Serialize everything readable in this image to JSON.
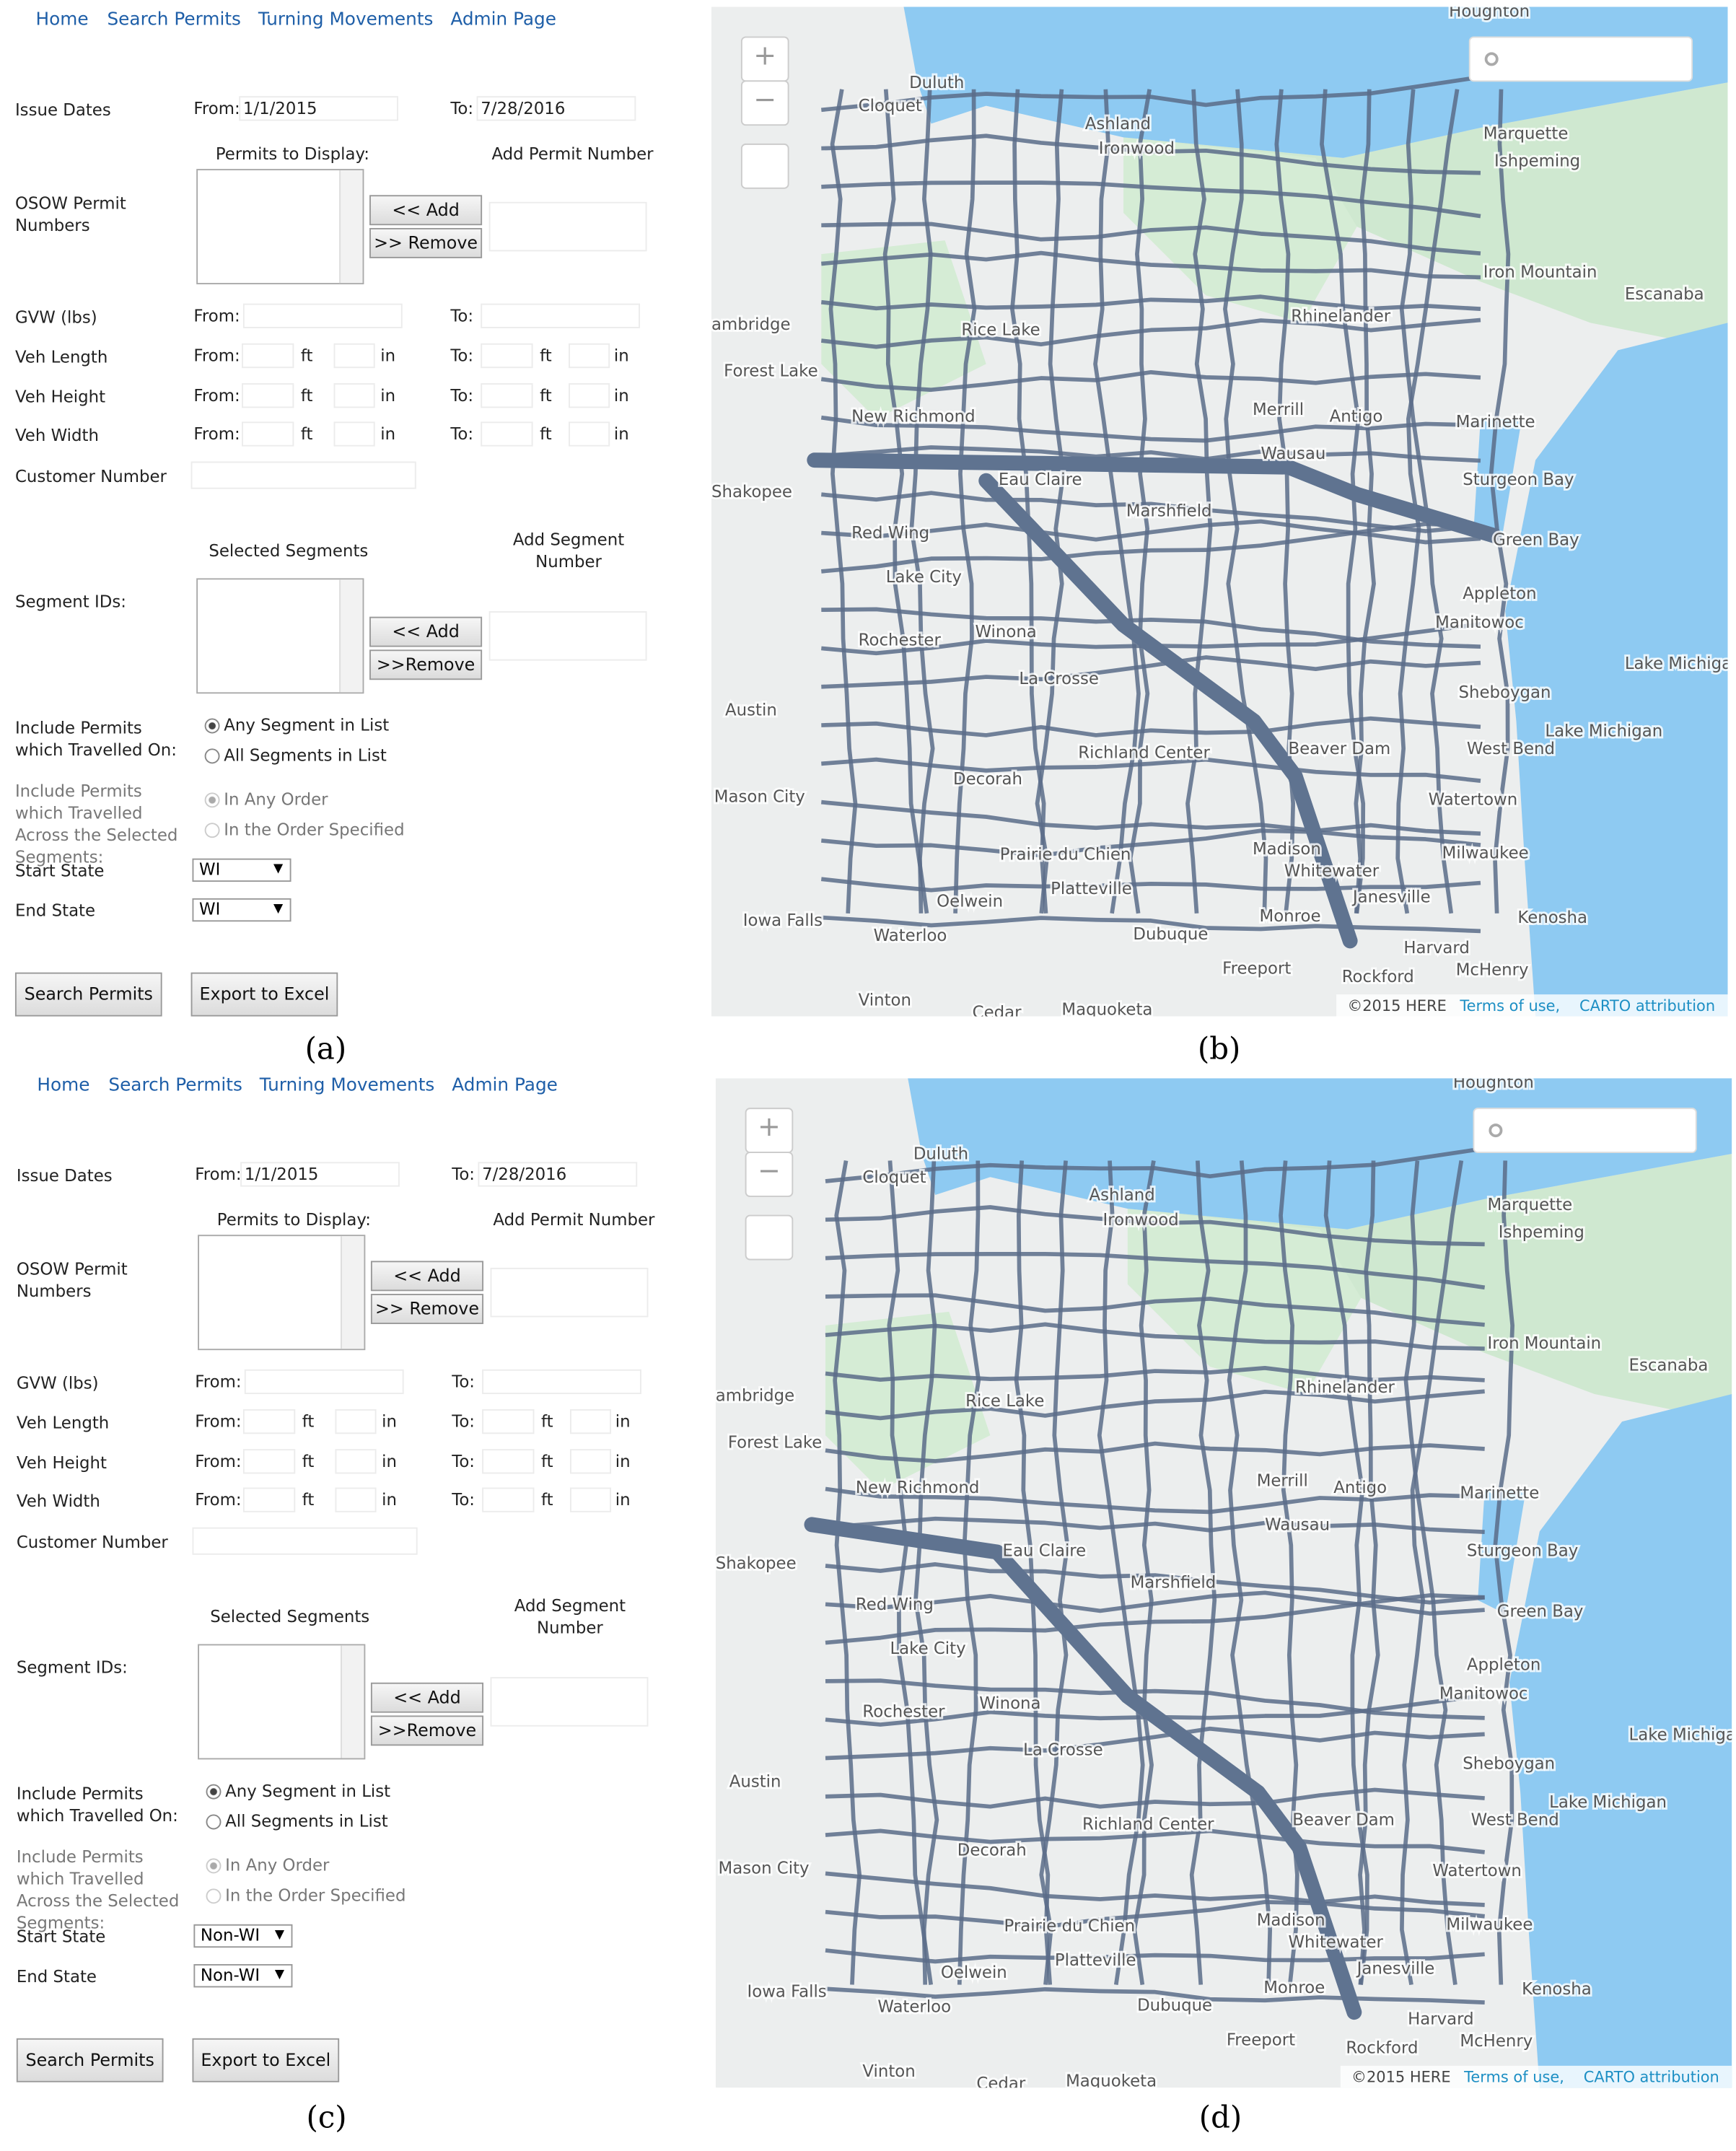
{
  "panels": [
    {
      "caption": "(a)",
      "form": {
        "nav": [
          "Home",
          "Search Permits",
          "Turning Movements",
          "Admin Page"
        ],
        "issue_dates": {
          "label": "Issue Dates",
          "from_label": "From:",
          "from": "1/1/2015",
          "to_label": "To:",
          "to": "7/28/2016"
        },
        "permits": {
          "label": "OSOW Permit Numbers",
          "list_label": "Permits to Display:",
          "add_label": "Add Permit Number",
          "add": "<< Add",
          "remove": ">> Remove"
        },
        "gvw": {
          "label": "GVW (lbs)",
          "from_label": "From:",
          "to_label": "To:"
        },
        "dims": [
          {
            "label": "Veh Length",
            "from_label": "From:",
            "ft": "ft",
            "in": "in",
            "to_label": "To:",
            "ft2": "ft",
            "in2": "in"
          },
          {
            "label": "Veh Height",
            "from_label": "From:",
            "ft": "ft",
            "in": "in",
            "to_label": "To:",
            "ft2": "ft",
            "in2": "in"
          },
          {
            "label": "Veh Width",
            "from_label": "From:",
            "ft": "ft",
            "in": "in",
            "to_label": "To:",
            "ft2": "ft",
            "in2": "in"
          }
        ],
        "customer": "Customer Number",
        "segments": {
          "label": "Segment IDs:",
          "list_label": "Selected Segments",
          "add_label": "Add Segment Number",
          "add": "<< Add",
          "remove": ">>Remove"
        },
        "travelled": {
          "label": "Include Permits which Travelled On:",
          "options": [
            "Any Segment in List",
            "All Segments in List"
          ]
        },
        "order": {
          "label": "Include Permits which Travelled Across the Selected Segments:",
          "options": [
            "In Any Order",
            "In the Order Specified"
          ]
        },
        "start_state": {
          "label": "Start State",
          "value": "WI"
        },
        "end_state": {
          "label": "End State",
          "value": "WI"
        },
        "buttons": [
          "Search Permits",
          "Export to Excel"
        ]
      }
    },
    {
      "caption": "(b)",
      "map": {
        "zoom_in": "+",
        "zoom_out": "−",
        "labels": [
          "Houghton",
          "Duluth",
          "Cloquet",
          "Ashland",
          "Ironwood",
          "Marquette",
          "Ishpeming",
          "Iron Mountain",
          "Escanaba",
          "ambridge",
          "Rice Lake",
          "Rhinelander",
          "Forest Lake",
          "New Richmond",
          "Merrill",
          "Antigo",
          "Marinette",
          "Wausau",
          "Eau Claire",
          "Shakopee",
          "Sturgeon Bay",
          "Green Bay",
          "Red Wing",
          "Marshfield",
          "Lake City",
          "Appleton",
          "Rochester",
          "Winona",
          "Manitowoc",
          "La Crosse",
          "Sheboygan",
          "Austin",
          "Lake Michigan",
          "Richland Center",
          "Beaver Dam",
          "West Bend",
          "Decorah",
          "Mason City",
          "Watertown",
          "Madison",
          "Milwaukee",
          "Prairie du Chien",
          "Whitewater",
          "Platteville",
          "Janesville",
          "Kenosha",
          "Iowa Falls",
          "Oelwein",
          "Waterloo",
          "Monroe",
          "Dubuque",
          "Harvard",
          "Freeport",
          "Rockford",
          "McHenry",
          "Vinton",
          "Cedar",
          "Maquoketa",
          "Lake Michigan"
        ],
        "attribution": [
          "©2015 HERE",
          "Terms of use,",
          "CARTO attribution"
        ]
      }
    },
    {
      "caption": "(c)",
      "form": {
        "nav": [
          "Home",
          "Search Permits",
          "Turning Movements",
          "Admin Page"
        ],
        "issue_dates": {
          "label": "Issue Dates",
          "from_label": "From:",
          "from": "1/1/2015",
          "to_label": "To:",
          "to": "7/28/2016"
        },
        "permits": {
          "label": "OSOW Permit Numbers",
          "list_label": "Permits to Display:",
          "add_label": "Add Permit Number",
          "add": "<< Add",
          "remove": ">> Remove"
        },
        "gvw": {
          "label": "GVW (lbs)",
          "from_label": "From:",
          "to_label": "To:"
        },
        "dims": [
          {
            "label": "Veh Length",
            "from_label": "From:",
            "ft": "ft",
            "in": "in",
            "to_label": "To:",
            "ft2": "ft",
            "in2": "in"
          },
          {
            "label": "Veh Height",
            "from_label": "From:",
            "ft": "ft",
            "in": "in",
            "to_label": "To:",
            "ft2": "ft",
            "in2": "in"
          },
          {
            "label": "Veh Width",
            "from_label": "From:",
            "ft": "ft",
            "in": "in",
            "to_label": "To:",
            "ft2": "ft",
            "in2": "in"
          }
        ],
        "customer": "Customer Number",
        "segments": {
          "label": "Segment IDs:",
          "list_label": "Selected Segments",
          "add_label": "Add Segment Number",
          "add": "<< Add",
          "remove": ">>Remove"
        },
        "travelled": {
          "label": "Include Permits which Travelled On:",
          "options": [
            "Any Segment in List",
            "All Segments in List"
          ]
        },
        "order": {
          "label": "Include Permits which Travelled Across the Selected Segments:",
          "options": [
            "In Any Order",
            "In the Order Specified"
          ]
        },
        "start_state": {
          "label": "Start State",
          "value": "Non-WI"
        },
        "end_state": {
          "label": "End State",
          "value": "Non-WI"
        },
        "buttons": [
          "Search Permits",
          "Export to Excel"
        ]
      }
    },
    {
      "caption": "(d)",
      "map": {
        "zoom_in": "+",
        "zoom_out": "−",
        "labels": [
          "Houghton",
          "Duluth",
          "Cloquet",
          "Ashland",
          "Ironwood",
          "Marquette",
          "Ishpeming",
          "Iron Mountain",
          "Escanaba",
          "ambridge",
          "Rice Lake",
          "Rhinelander",
          "Forest Lake",
          "New Richmond",
          "Merrill",
          "Antigo",
          "Marinette",
          "Wausau",
          "Eau Claire",
          "Shakopee",
          "Sturgeon Bay",
          "Green Bay",
          "Red Wing",
          "Marshfield",
          "Lake City",
          "Appleton",
          "Rochester",
          "Winona",
          "Manitowoc",
          "La Crosse",
          "Sheboygan",
          "Austin",
          "Lake Michigan",
          "Richland Center",
          "Beaver Dam",
          "West Bend",
          "Decorah",
          "Mason City",
          "Watertown",
          "Madison",
          "Milwaukee",
          "Prairie du Chien",
          "Whitewater",
          "Platteville",
          "Janesville",
          "Kenosha",
          "Iowa Falls",
          "Oelwein",
          "Waterloo",
          "Monroe",
          "Dubuque",
          "Harvard",
          "Freeport",
          "Rockford",
          "McHenry",
          "Vinton",
          "Cedar",
          "Maquoketa",
          "Lake Michigan"
        ],
        "attribution": [
          "©2015 HERE",
          "Terms of use,",
          "CARTO attribution"
        ]
      }
    }
  ]
}
